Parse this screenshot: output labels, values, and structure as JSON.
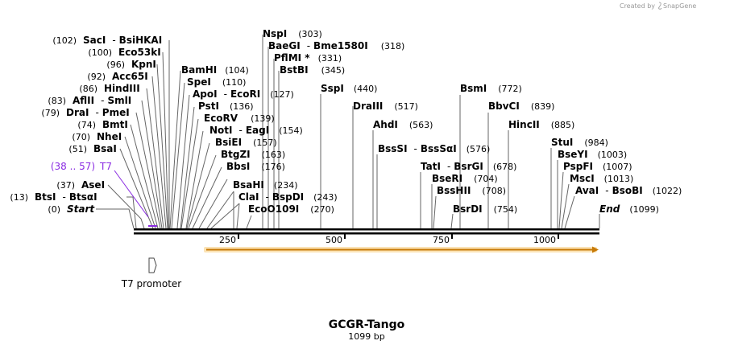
{
  "credit": "Created by",
  "brand": "SnapGene",
  "title": "GCGR-Tango",
  "subtitle": "1099 bp",
  "scale_ticks": [
    "250",
    "500",
    "750",
    "1000"
  ],
  "t7_feature": {
    "range": "(38 .. 57)",
    "name": "T7"
  },
  "t7_promoter": "T7 promoter",
  "left_sites": [
    {
      "pos": "(102)",
      "name": "SacI",
      "sep": "-",
      "name2": "BsiHKAI"
    },
    {
      "pos": "(100)",
      "name": "Eco53kI"
    },
    {
      "pos": "(96)",
      "name": "KpnI"
    },
    {
      "pos": "(92)",
      "name": "Acc65I"
    },
    {
      "pos": "(86)",
      "name": "HindIII"
    },
    {
      "pos": "(83)",
      "name": "AflII",
      "sep": "-",
      "name2": "SmlI"
    },
    {
      "pos": "(79)",
      "name": "DraI",
      "sep": "-",
      "name2": "PmeI"
    },
    {
      "pos": "(74)",
      "name": "BmtI"
    },
    {
      "pos": "(70)",
      "name": "NheI"
    },
    {
      "pos": "(51)",
      "name": "BsaI"
    },
    {
      "pos": "(37)",
      "name": "AseI"
    },
    {
      "pos": "(13)",
      "name": "BtsI",
      "sep": "-",
      "name2": "BtsαI"
    },
    {
      "pos": "(0)",
      "name": "Start"
    }
  ],
  "sites_a": [
    {
      "name": "BamHI",
      "pos": "(104)"
    },
    {
      "name": "SpeI",
      "pos": "(110)"
    },
    {
      "name": "ApoI",
      "sep": "-",
      "name2": "EcoRI",
      "pos": "(127)"
    },
    {
      "name": "PstI",
      "pos": "(136)"
    },
    {
      "name": "EcoRV",
      "pos": "(139)"
    },
    {
      "name": "NotI",
      "sep": "-",
      "name2": "EagI",
      "pos": "(154)"
    },
    {
      "name": "BsiEI",
      "pos": "(157)"
    },
    {
      "name": "BtgZI",
      "pos": "(163)"
    },
    {
      "name": "BbsI",
      "pos": "(176)"
    },
    {
      "name": "BsaHI",
      "pos": "(234)"
    },
    {
      "name": "ClaI",
      "sep": "-",
      "name2": "BspDI",
      "pos": "(243)"
    },
    {
      "name": "EcoO109I",
      "pos": "(270)"
    }
  ],
  "sites_b": [
    {
      "name": "NspI",
      "pos": "(303)"
    },
    {
      "name": "BaeGI",
      "sep": "-",
      "name2": "Bme1580I",
      "pos": "(318)"
    },
    {
      "name": "PflMI *",
      "pos": "(331)"
    },
    {
      "name": "BstBI",
      "pos": "(345)"
    }
  ],
  "sites_c": [
    {
      "name": "SspI",
      "pos": "(440)"
    },
    {
      "name": "DraIII",
      "pos": "(517)"
    },
    {
      "name": "AhdI",
      "pos": "(563)"
    },
    {
      "name": "BssSI",
      "sep": "-",
      "name2": "BssSαI",
      "pos": "(576)"
    },
    {
      "name": "TatI",
      "sep": "-",
      "name2": "BsrGI",
      "pos": "(678)"
    },
    {
      "name": "BseRI",
      "pos": "(704)"
    },
    {
      "name": "BssHII",
      "pos": "(708)"
    },
    {
      "name": "BsrDI",
      "pos": "(754)"
    }
  ],
  "sites_d": [
    {
      "name": "BsmI",
      "pos": "(772)"
    },
    {
      "name": "BbvCI",
      "pos": "(839)"
    },
    {
      "name": "HincII",
      "pos": "(885)"
    },
    {
      "name": "StuI",
      "pos": "(984)"
    },
    {
      "name": "BseYI",
      "pos": "(1003)"
    },
    {
      "name": "PspFI",
      "pos": "(1007)"
    },
    {
      "name": "MscI",
      "pos": "(1013)"
    },
    {
      "name": "AvaI",
      "sep": "-",
      "name2": "BsoBI",
      "pos": "(1022)"
    },
    {
      "name": "End",
      "pos": "(1099)"
    }
  ],
  "colors": {
    "backbone": "#000000",
    "orf": "#f4a21a",
    "t7": "#8a2be2",
    "line": "#666666"
  }
}
